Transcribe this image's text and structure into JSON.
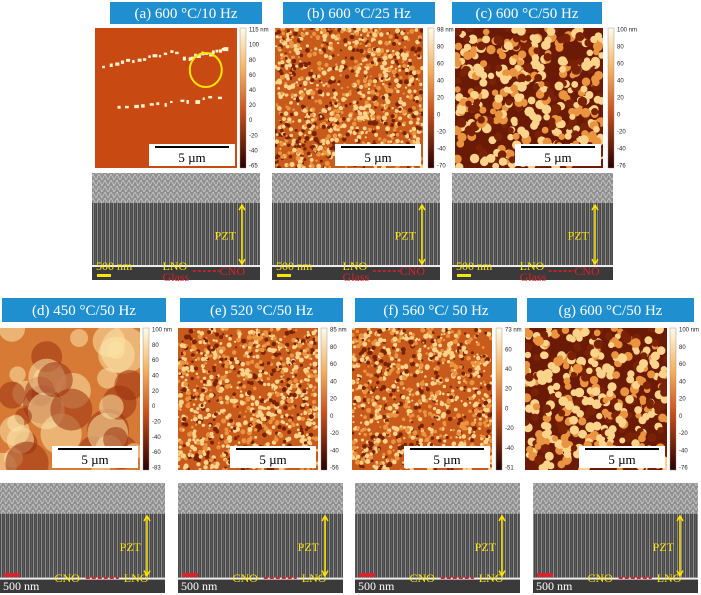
{
  "panels": [
    {
      "label": "(a) 600 °C/10 Hz",
      "colorbar": [
        "115 nm",
        "100",
        "80",
        "60",
        "40",
        "20",
        "0",
        "-20",
        "-40",
        "-65"
      ],
      "scale": "5 µm",
      "sem": {
        "pzt": "PZT",
        "scale": "500 nm",
        "lno": "LNO",
        "cno": "CNO",
        "glass": "Glass"
      }
    },
    {
      "label": "(b) 600 °C/25 Hz",
      "colorbar": [
        "98 nm",
        "80",
        "60",
        "40",
        "20",
        "0",
        "-20",
        "-40",
        "-70"
      ],
      "scale": "5 µm",
      "sem": {
        "pzt": "PZT",
        "scale": "500 nm",
        "lno": "LNO",
        "cno": "CNO",
        "glass": "Glass"
      }
    },
    {
      "label": "(c) 600 °C/50 Hz",
      "colorbar": [
        "100 nm",
        "80",
        "60",
        "40",
        "20",
        "0",
        "-20",
        "-40",
        "-76"
      ],
      "scale": "5 µm",
      "sem": {
        "pzt": "PZT",
        "scale": "500 nm",
        "lno": "LNO",
        "cno": "CNO",
        "glass": "Glass"
      }
    },
    {
      "label": "(d) 450 °C/50 Hz",
      "colorbar": [
        "100 nm",
        "80",
        "60",
        "40",
        "20",
        "0",
        "-20",
        "-40",
        "-60",
        "-83"
      ],
      "scale": "5 µm",
      "sem": {
        "pzt": "PZT",
        "scale": "500 nm",
        "cno": "CNO",
        "lno": "LNO"
      }
    },
    {
      "label": "(e) 520 °C/50 Hz",
      "colorbar": [
        "85 nm",
        "80",
        "60",
        "40",
        "20",
        "0",
        "-20",
        "-40",
        "-56"
      ],
      "scale": "5 µm",
      "sem": {
        "pzt": "PZT",
        "scale": "500 nm",
        "cno": "CNO",
        "lno": "LNO"
      }
    },
    {
      "label": "(f) 560 °C/ 50 Hz",
      "colorbar": [
        "73 nm",
        "60",
        "40",
        "20",
        "0",
        "-20",
        "-40",
        "-51"
      ],
      "scale": "5 µm",
      "sem": {
        "pzt": "PZT",
        "scale": "500 nm",
        "cno": "CNO",
        "lno": "LNO"
      }
    },
    {
      "label": "(g) 600 °C/50 Hz",
      "colorbar": [
        "100 nm",
        "80",
        "60",
        "40",
        "20",
        "0",
        "-20",
        "-40",
        "-76"
      ],
      "scale": "5 µm",
      "sem": {
        "pzt": "PZT",
        "scale": "500 nm",
        "cno": "CNO",
        "lno": "LNO"
      }
    }
  ]
}
